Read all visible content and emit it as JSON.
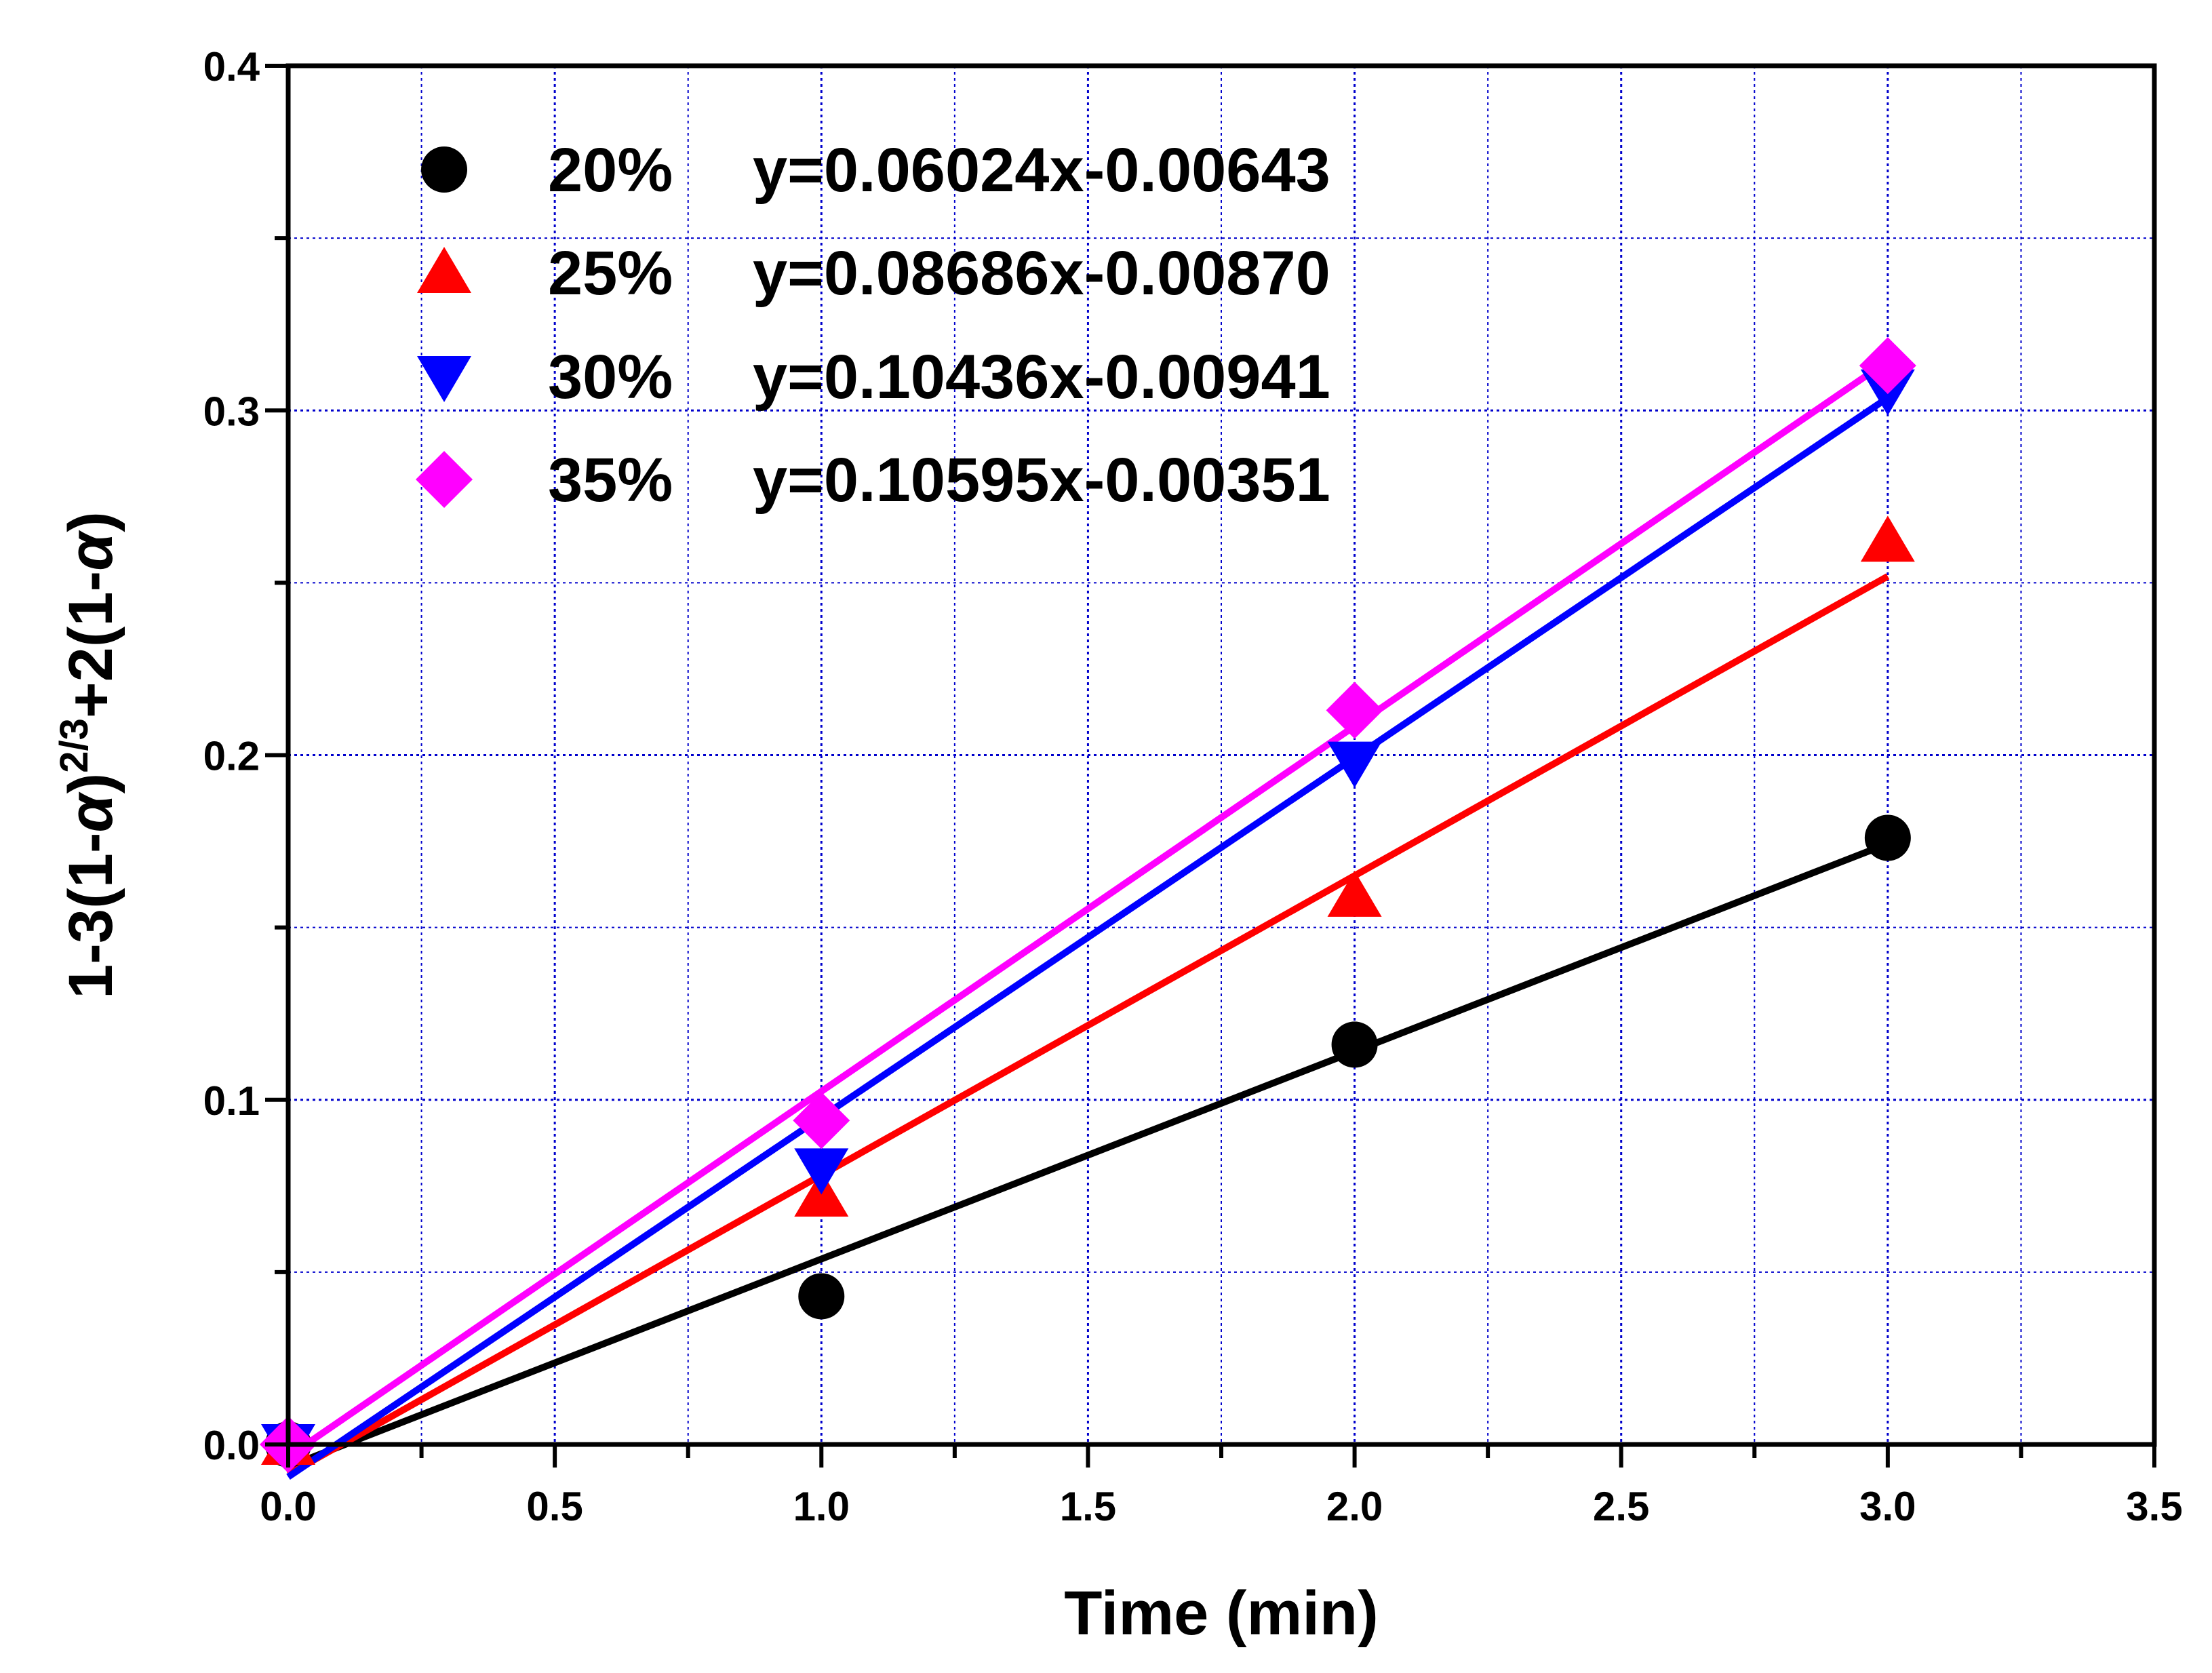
{
  "chart_data": {
    "type": "scatter",
    "title": "",
    "xlabel": "Time (min)",
    "ylabel": "1-3(1-α)^(2/3)+2(1-α)",
    "ylabel_parts": {
      "pre": "1-3(1-",
      "alpha1": "α",
      "mid": ")",
      "sup": "2/3",
      "post": "+2(1-",
      "alpha2": "α",
      "end": ")"
    },
    "xlim": [
      0,
      3.5
    ],
    "ylim": [
      0,
      0.4
    ],
    "x_ticks": [
      0.0,
      0.5,
      1.0,
      1.5,
      2.0,
      2.5,
      3.0,
      3.5
    ],
    "x_tick_labels": [
      "0.0",
      "0.5",
      "1.0",
      "1.5",
      "2.0",
      "2.5",
      "3.0",
      "3.5"
    ],
    "y_ticks": [
      0.0,
      0.1,
      0.2,
      0.3,
      0.4
    ],
    "y_tick_labels": [
      "0.0",
      "0.1",
      "0.2",
      "0.3",
      "0.4"
    ],
    "grid": true,
    "legend_position": "top-left",
    "series": [
      {
        "name": "20%",
        "equation": "y=0.06024x-0.00643",
        "marker": "circle",
        "color": "#000000",
        "x": [
          0,
          1,
          2,
          3
        ],
        "y": [
          0.0,
          0.043,
          0.116,
          0.176
        ],
        "fit": {
          "slope": 0.06024,
          "intercept": -0.00643
        }
      },
      {
        "name": "25%",
        "equation": "y=0.08686x-0.00870",
        "marker": "triangle-up",
        "color": "#ff0000",
        "x": [
          0,
          1,
          2,
          3
        ],
        "y": [
          0.0,
          0.072,
          0.159,
          0.262
        ],
        "fit": {
          "slope": 0.08686,
          "intercept": -0.0087
        }
      },
      {
        "name": "30%",
        "equation": "y=0.10436x-0.00941",
        "marker": "triangle-down",
        "color": "#0000ff",
        "x": [
          0,
          1,
          2,
          3
        ],
        "y": [
          0.0,
          0.08,
          0.198,
          0.306
        ],
        "fit": {
          "slope": 0.10436,
          "intercept": -0.00941
        }
      },
      {
        "name": "35%",
        "equation": "y=0.10595x-0.00351",
        "marker": "diamond",
        "color": "#ff00ff",
        "x": [
          0,
          1,
          2,
          3
        ],
        "y": [
          0.0,
          0.094,
          0.213,
          0.313
        ],
        "fit": {
          "slope": 0.10595,
          "intercept": -0.00351
        }
      }
    ]
  }
}
